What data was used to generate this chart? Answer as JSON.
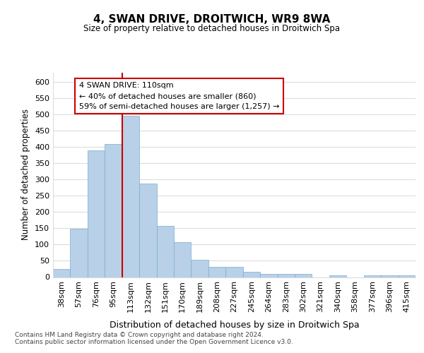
{
  "title": "4, SWAN DRIVE, DROITWICH, WR9 8WA",
  "subtitle": "Size of property relative to detached houses in Droitwich Spa",
  "xlabel": "Distribution of detached houses by size in Droitwich Spa",
  "ylabel": "Number of detached properties",
  "bar_labels": [
    "38sqm",
    "57sqm",
    "76sqm",
    "95sqm",
    "113sqm",
    "132sqm",
    "151sqm",
    "170sqm",
    "189sqm",
    "208sqm",
    "227sqm",
    "245sqm",
    "264sqm",
    "283sqm",
    "302sqm",
    "321sqm",
    "340sqm",
    "358sqm",
    "377sqm",
    "396sqm",
    "415sqm"
  ],
  "bar_values": [
    25,
    148,
    390,
    410,
    497,
    287,
    158,
    108,
    54,
    32,
    32,
    17,
    10,
    10,
    10,
    0,
    5,
    0,
    5,
    5,
    5
  ],
  "bar_color": "#b8d0e8",
  "bar_edge_color": "#7aadd0",
  "highlight_bar_index": 4,
  "highlight_color": "#cc0000",
  "annotation_text": "4 SWAN DRIVE: 110sqm\n← 40% of detached houses are smaller (860)\n59% of semi-detached houses are larger (1,257) →",
  "annotation_box_color": "#ffffff",
  "annotation_box_edge": "#cc0000",
  "ylim": [
    0,
    630
  ],
  "yticks": [
    0,
    50,
    100,
    150,
    200,
    250,
    300,
    350,
    400,
    450,
    500,
    550,
    600
  ],
  "footer": "Contains HM Land Registry data © Crown copyright and database right 2024.\nContains public sector information licensed under the Open Government Licence v3.0.",
  "bg_color": "#ffffff",
  "plot_bg_color": "#ffffff",
  "grid_color": "#dddddd"
}
